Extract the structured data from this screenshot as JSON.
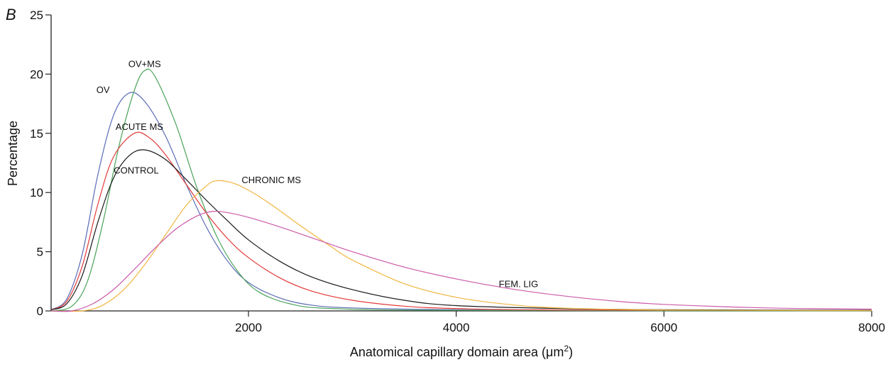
{
  "chart_data": {
    "type": "line",
    "panel_label": "B",
    "title": "",
    "xlabel": "Anatomical capillary domain area (μm",
    "xlabel_sup": "2",
    "xlabel_close": ")",
    "ylabel": "Percentage",
    "xlim": [
      100,
      8000
    ],
    "ylim": [
      0,
      25
    ],
    "x_ticks": [
      2000,
      4000,
      6000,
      8000
    ],
    "y_ticks": [
      0,
      5,
      10,
      15,
      20,
      25
    ],
    "grid": false,
    "legend": "none",
    "series": [
      {
        "name": "OV",
        "color": "#5a6bb5",
        "label_at": [
          600,
          18.4
        ],
        "points": [
          [
            100,
            0.1
          ],
          [
            250,
            1.0
          ],
          [
            400,
            4.8
          ],
          [
            550,
            11.5
          ],
          [
            700,
            16.5
          ],
          [
            850,
            18.4
          ],
          [
            1000,
            17.7
          ],
          [
            1200,
            14.8
          ],
          [
            1400,
            10.7
          ],
          [
            1600,
            7.0
          ],
          [
            1800,
            4.2
          ],
          [
            2000,
            2.4
          ],
          [
            2300,
            1.1
          ],
          [
            2600,
            0.5
          ],
          [
            3000,
            0.25
          ],
          [
            4000,
            0.1
          ],
          [
            5000,
            0.05
          ],
          [
            8000,
            0.05
          ]
        ]
      },
      {
        "name": "OV+MS",
        "color": "#4aa35a",
        "label_at": [
          1000,
          20.6
        ],
        "points": [
          [
            100,
            0.0
          ],
          [
            300,
            0.4
          ],
          [
            450,
            2.5
          ],
          [
            600,
            7.5
          ],
          [
            750,
            13.8
          ],
          [
            900,
            18.6
          ],
          [
            1000,
            20.3
          ],
          [
            1100,
            19.8
          ],
          [
            1300,
            15.8
          ],
          [
            1500,
            10.5
          ],
          [
            1700,
            6.2
          ],
          [
            1900,
            3.3
          ],
          [
            2100,
            1.6
          ],
          [
            2400,
            0.6
          ],
          [
            2800,
            0.2
          ],
          [
            4000,
            0.05
          ],
          [
            8000,
            0.0
          ]
        ]
      },
      {
        "name": "ACUTE MS",
        "color": "#e23a3a",
        "label_at": [
          950,
          15.3
        ],
        "points": [
          [
            100,
            0.1
          ],
          [
            250,
            0.8
          ],
          [
            400,
            3.8
          ],
          [
            550,
            9.0
          ],
          [
            700,
            13.0
          ],
          [
            900,
            15.0
          ],
          [
            1050,
            14.6
          ],
          [
            1200,
            13.2
          ],
          [
            1400,
            10.7
          ],
          [
            1600,
            8.2
          ],
          [
            1800,
            6.1
          ],
          [
            2000,
            4.5
          ],
          [
            2300,
            2.8
          ],
          [
            2600,
            1.7
          ],
          [
            3000,
            0.9
          ],
          [
            3500,
            0.4
          ],
          [
            4000,
            0.2
          ],
          [
            5000,
            0.08
          ],
          [
            8000,
            0.05
          ]
        ]
      },
      {
        "name": "CONTROL",
        "color": "#1a1a1a",
        "label_at": [
          920,
          11.6
        ],
        "points": [
          [
            100,
            0.1
          ],
          [
            250,
            0.6
          ],
          [
            400,
            3.0
          ],
          [
            550,
            7.5
          ],
          [
            700,
            11.2
          ],
          [
            850,
            13.1
          ],
          [
            1000,
            13.6
          ],
          [
            1200,
            12.8
          ],
          [
            1400,
            11.1
          ],
          [
            1600,
            9.3
          ],
          [
            1800,
            7.6
          ],
          [
            2000,
            6.0
          ],
          [
            2300,
            4.2
          ],
          [
            2600,
            2.9
          ],
          [
            3000,
            1.8
          ],
          [
            3500,
            0.9
          ],
          [
            4000,
            0.45
          ],
          [
            5000,
            0.2
          ],
          [
            6000,
            0.1
          ],
          [
            8000,
            0.05
          ]
        ]
      },
      {
        "name": "CHRONIC MS",
        "color": "#f0b640",
        "label_at": [
          2220,
          10.8
        ],
        "points": [
          [
            100,
            0.0
          ],
          [
            400,
            0.0
          ],
          [
            600,
            0.5
          ],
          [
            800,
            1.8
          ],
          [
            1000,
            3.9
          ],
          [
            1200,
            6.4
          ],
          [
            1400,
            8.9
          ],
          [
            1600,
            10.6
          ],
          [
            1700,
            11.0
          ],
          [
            1850,
            10.8
          ],
          [
            2000,
            10.2
          ],
          [
            2200,
            9.1
          ],
          [
            2500,
            7.2
          ],
          [
            2800,
            5.4
          ],
          [
            3000,
            4.3
          ],
          [
            3500,
            2.3
          ],
          [
            4000,
            1.15
          ],
          [
            4500,
            0.55
          ],
          [
            5000,
            0.25
          ],
          [
            6000,
            0.08
          ],
          [
            8000,
            0.02
          ]
        ]
      },
      {
        "name": "FEM. LIG",
        "color": "#cc5aa8",
        "label_at": [
          4600,
          2.0
        ],
        "points": [
          [
            100,
            0.0
          ],
          [
            300,
            0.0
          ],
          [
            500,
            0.6
          ],
          [
            700,
            1.8
          ],
          [
            900,
            3.5
          ],
          [
            1100,
            5.3
          ],
          [
            1300,
            6.9
          ],
          [
            1500,
            8.0
          ],
          [
            1650,
            8.4
          ],
          [
            1800,
            8.3
          ],
          [
            2000,
            7.9
          ],
          [
            2300,
            7.1
          ],
          [
            2700,
            5.9
          ],
          [
            3000,
            5.0
          ],
          [
            3500,
            3.7
          ],
          [
            4000,
            2.7
          ],
          [
            4500,
            1.9
          ],
          [
            5000,
            1.3
          ],
          [
            5500,
            0.85
          ],
          [
            6000,
            0.55
          ],
          [
            7000,
            0.25
          ],
          [
            8000,
            0.15
          ]
        ]
      }
    ]
  }
}
